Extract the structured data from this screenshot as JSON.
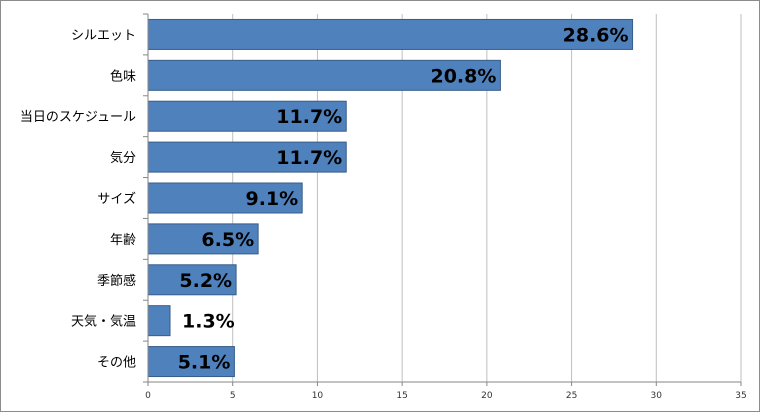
{
  "chart_data": {
    "type": "bar",
    "orientation": "horizontal",
    "categories": [
      "シルエット",
      "色味",
      "当日のスケジュール",
      "気分",
      "サイズ",
      "年齢",
      "季節感",
      "天気・気温",
      "その他"
    ],
    "values": [
      28.6,
      20.8,
      11.7,
      11.7,
      9.1,
      6.5,
      5.2,
      1.3,
      5.1
    ],
    "data_labels": [
      "28.6%",
      "20.8%",
      "11.7%",
      "11.7%",
      "9.1%",
      "6.5%",
      "5.2%",
      "1.3%",
      "5.1%"
    ],
    "xlim": [
      0,
      35
    ],
    "xticks": [
      0,
      5,
      10,
      15,
      20,
      25,
      30,
      35
    ],
    "title": "",
    "xlabel": "",
    "ylabel": "",
    "grid": true,
    "legend": "none",
    "colors": {
      "bar": "#4f81bd",
      "bar_edge": "#385d8a",
      "grid": "#bfbfbf",
      "axis": "#868686"
    }
  }
}
